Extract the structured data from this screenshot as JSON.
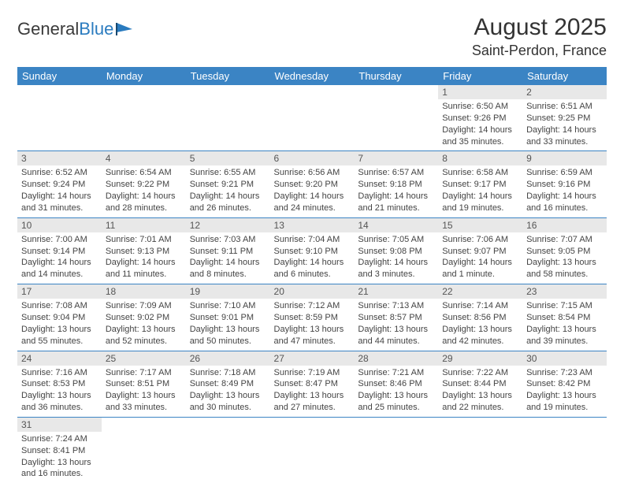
{
  "logo": {
    "text1": "General",
    "text2": "Blue"
  },
  "title": "August 2025",
  "location": "Saint-Perdon, France",
  "header_bg": "#3b84c4",
  "header_fg": "#ffffff",
  "daynum_bg": "#e8e8e8",
  "cell_border": "#3b84c4",
  "columns": [
    "Sunday",
    "Monday",
    "Tuesday",
    "Wednesday",
    "Thursday",
    "Friday",
    "Saturday"
  ],
  "weeks": [
    [
      null,
      null,
      null,
      null,
      null,
      {
        "n": "1",
        "sr": "6:50 AM",
        "ss": "9:26 PM",
        "dl": "14 hours and 35 minutes."
      },
      {
        "n": "2",
        "sr": "6:51 AM",
        "ss": "9:25 PM",
        "dl": "14 hours and 33 minutes."
      }
    ],
    [
      {
        "n": "3",
        "sr": "6:52 AM",
        "ss": "9:24 PM",
        "dl": "14 hours and 31 minutes."
      },
      {
        "n": "4",
        "sr": "6:54 AM",
        "ss": "9:22 PM",
        "dl": "14 hours and 28 minutes."
      },
      {
        "n": "5",
        "sr": "6:55 AM",
        "ss": "9:21 PM",
        "dl": "14 hours and 26 minutes."
      },
      {
        "n": "6",
        "sr": "6:56 AM",
        "ss": "9:20 PM",
        "dl": "14 hours and 24 minutes."
      },
      {
        "n": "7",
        "sr": "6:57 AM",
        "ss": "9:18 PM",
        "dl": "14 hours and 21 minutes."
      },
      {
        "n": "8",
        "sr": "6:58 AM",
        "ss": "9:17 PM",
        "dl": "14 hours and 19 minutes."
      },
      {
        "n": "9",
        "sr": "6:59 AM",
        "ss": "9:16 PM",
        "dl": "14 hours and 16 minutes."
      }
    ],
    [
      {
        "n": "10",
        "sr": "7:00 AM",
        "ss": "9:14 PM",
        "dl": "14 hours and 14 minutes."
      },
      {
        "n": "11",
        "sr": "7:01 AM",
        "ss": "9:13 PM",
        "dl": "14 hours and 11 minutes."
      },
      {
        "n": "12",
        "sr": "7:03 AM",
        "ss": "9:11 PM",
        "dl": "14 hours and 8 minutes."
      },
      {
        "n": "13",
        "sr": "7:04 AM",
        "ss": "9:10 PM",
        "dl": "14 hours and 6 minutes."
      },
      {
        "n": "14",
        "sr": "7:05 AM",
        "ss": "9:08 PM",
        "dl": "14 hours and 3 minutes."
      },
      {
        "n": "15",
        "sr": "7:06 AM",
        "ss": "9:07 PM",
        "dl": "14 hours and 1 minute."
      },
      {
        "n": "16",
        "sr": "7:07 AM",
        "ss": "9:05 PM",
        "dl": "13 hours and 58 minutes."
      }
    ],
    [
      {
        "n": "17",
        "sr": "7:08 AM",
        "ss": "9:04 PM",
        "dl": "13 hours and 55 minutes."
      },
      {
        "n": "18",
        "sr": "7:09 AM",
        "ss": "9:02 PM",
        "dl": "13 hours and 52 minutes."
      },
      {
        "n": "19",
        "sr": "7:10 AM",
        "ss": "9:01 PM",
        "dl": "13 hours and 50 minutes."
      },
      {
        "n": "20",
        "sr": "7:12 AM",
        "ss": "8:59 PM",
        "dl": "13 hours and 47 minutes."
      },
      {
        "n": "21",
        "sr": "7:13 AM",
        "ss": "8:57 PM",
        "dl": "13 hours and 44 minutes."
      },
      {
        "n": "22",
        "sr": "7:14 AM",
        "ss": "8:56 PM",
        "dl": "13 hours and 42 minutes."
      },
      {
        "n": "23",
        "sr": "7:15 AM",
        "ss": "8:54 PM",
        "dl": "13 hours and 39 minutes."
      }
    ],
    [
      {
        "n": "24",
        "sr": "7:16 AM",
        "ss": "8:53 PM",
        "dl": "13 hours and 36 minutes."
      },
      {
        "n": "25",
        "sr": "7:17 AM",
        "ss": "8:51 PM",
        "dl": "13 hours and 33 minutes."
      },
      {
        "n": "26",
        "sr": "7:18 AM",
        "ss": "8:49 PM",
        "dl": "13 hours and 30 minutes."
      },
      {
        "n": "27",
        "sr": "7:19 AM",
        "ss": "8:47 PM",
        "dl": "13 hours and 27 minutes."
      },
      {
        "n": "28",
        "sr": "7:21 AM",
        "ss": "8:46 PM",
        "dl": "13 hours and 25 minutes."
      },
      {
        "n": "29",
        "sr": "7:22 AM",
        "ss": "8:44 PM",
        "dl": "13 hours and 22 minutes."
      },
      {
        "n": "30",
        "sr": "7:23 AM",
        "ss": "8:42 PM",
        "dl": "13 hours and 19 minutes."
      }
    ],
    [
      {
        "n": "31",
        "sr": "7:24 AM",
        "ss": "8:41 PM",
        "dl": "13 hours and 16 minutes."
      },
      null,
      null,
      null,
      null,
      null,
      null
    ]
  ]
}
